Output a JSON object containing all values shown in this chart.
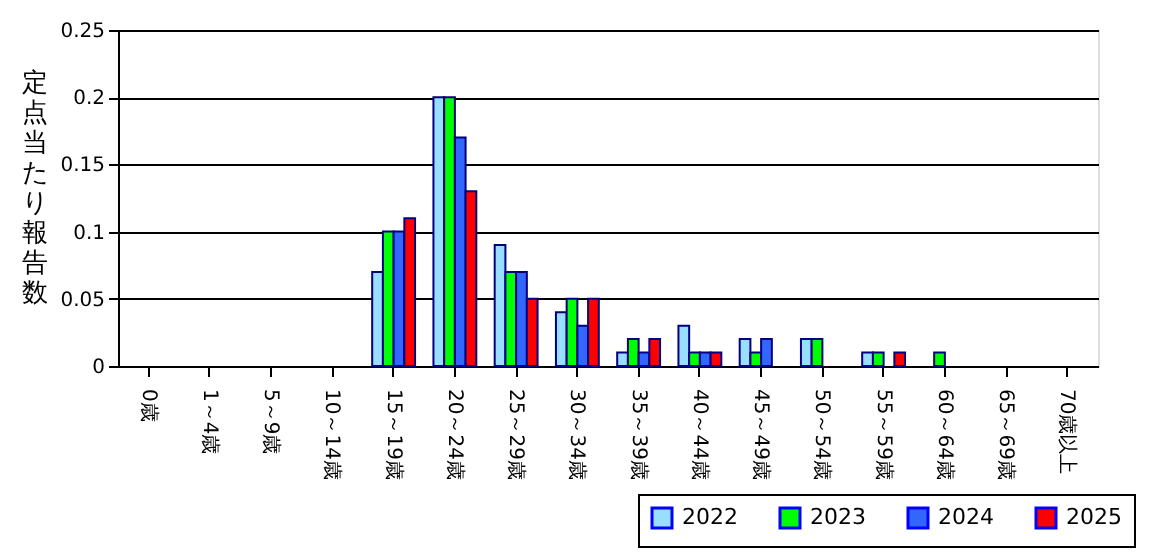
{
  "chart_data": {
    "type": "bar",
    "ylabel": "定点当たり報告数",
    "categories": [
      "0歳",
      "1～4歳",
      "5～9歳",
      "10～14歳",
      "15～19歳",
      "20～24歳",
      "25～29歳",
      "30～34歳",
      "35～39歳",
      "40～44歳",
      "45～49歳",
      "50～54歳",
      "55～59歳",
      "60～64歳",
      "65～69歳",
      "70歳以上"
    ],
    "series": [
      {
        "name": "2022",
        "color": "#99ddff",
        "values": [
          0,
          0,
          0,
          0,
          0.07,
          0.2,
          0.09,
          0.04,
          0.01,
          0.03,
          0.02,
          0.02,
          0.01,
          0,
          0,
          0
        ]
      },
      {
        "name": "2023",
        "color": "#00ff00",
        "values": [
          0,
          0,
          0,
          0,
          0.1,
          0.2,
          0.07,
          0.05,
          0.02,
          0.01,
          0.01,
          0.02,
          0.01,
          0.01,
          0,
          0
        ]
      },
      {
        "name": "2024",
        "color": "#3366ff",
        "values": [
          0,
          0,
          0,
          0,
          0.1,
          0.17,
          0.07,
          0.03,
          0.01,
          0.01,
          0.02,
          0,
          0,
          0,
          0,
          0
        ]
      },
      {
        "name": "2025",
        "color": "#ff0000",
        "values": [
          0,
          0,
          0,
          0,
          0.11,
          0.13,
          0.05,
          0.05,
          0.02,
          0.01,
          0,
          0,
          0.01,
          0,
          0,
          0
        ]
      }
    ],
    "ylim": [
      0,
      0.25
    ],
    "yticks": [
      0,
      0.05,
      0.1,
      0.15,
      0.2,
      0.25
    ],
    "grid": "y",
    "legend": "bottom right"
  }
}
